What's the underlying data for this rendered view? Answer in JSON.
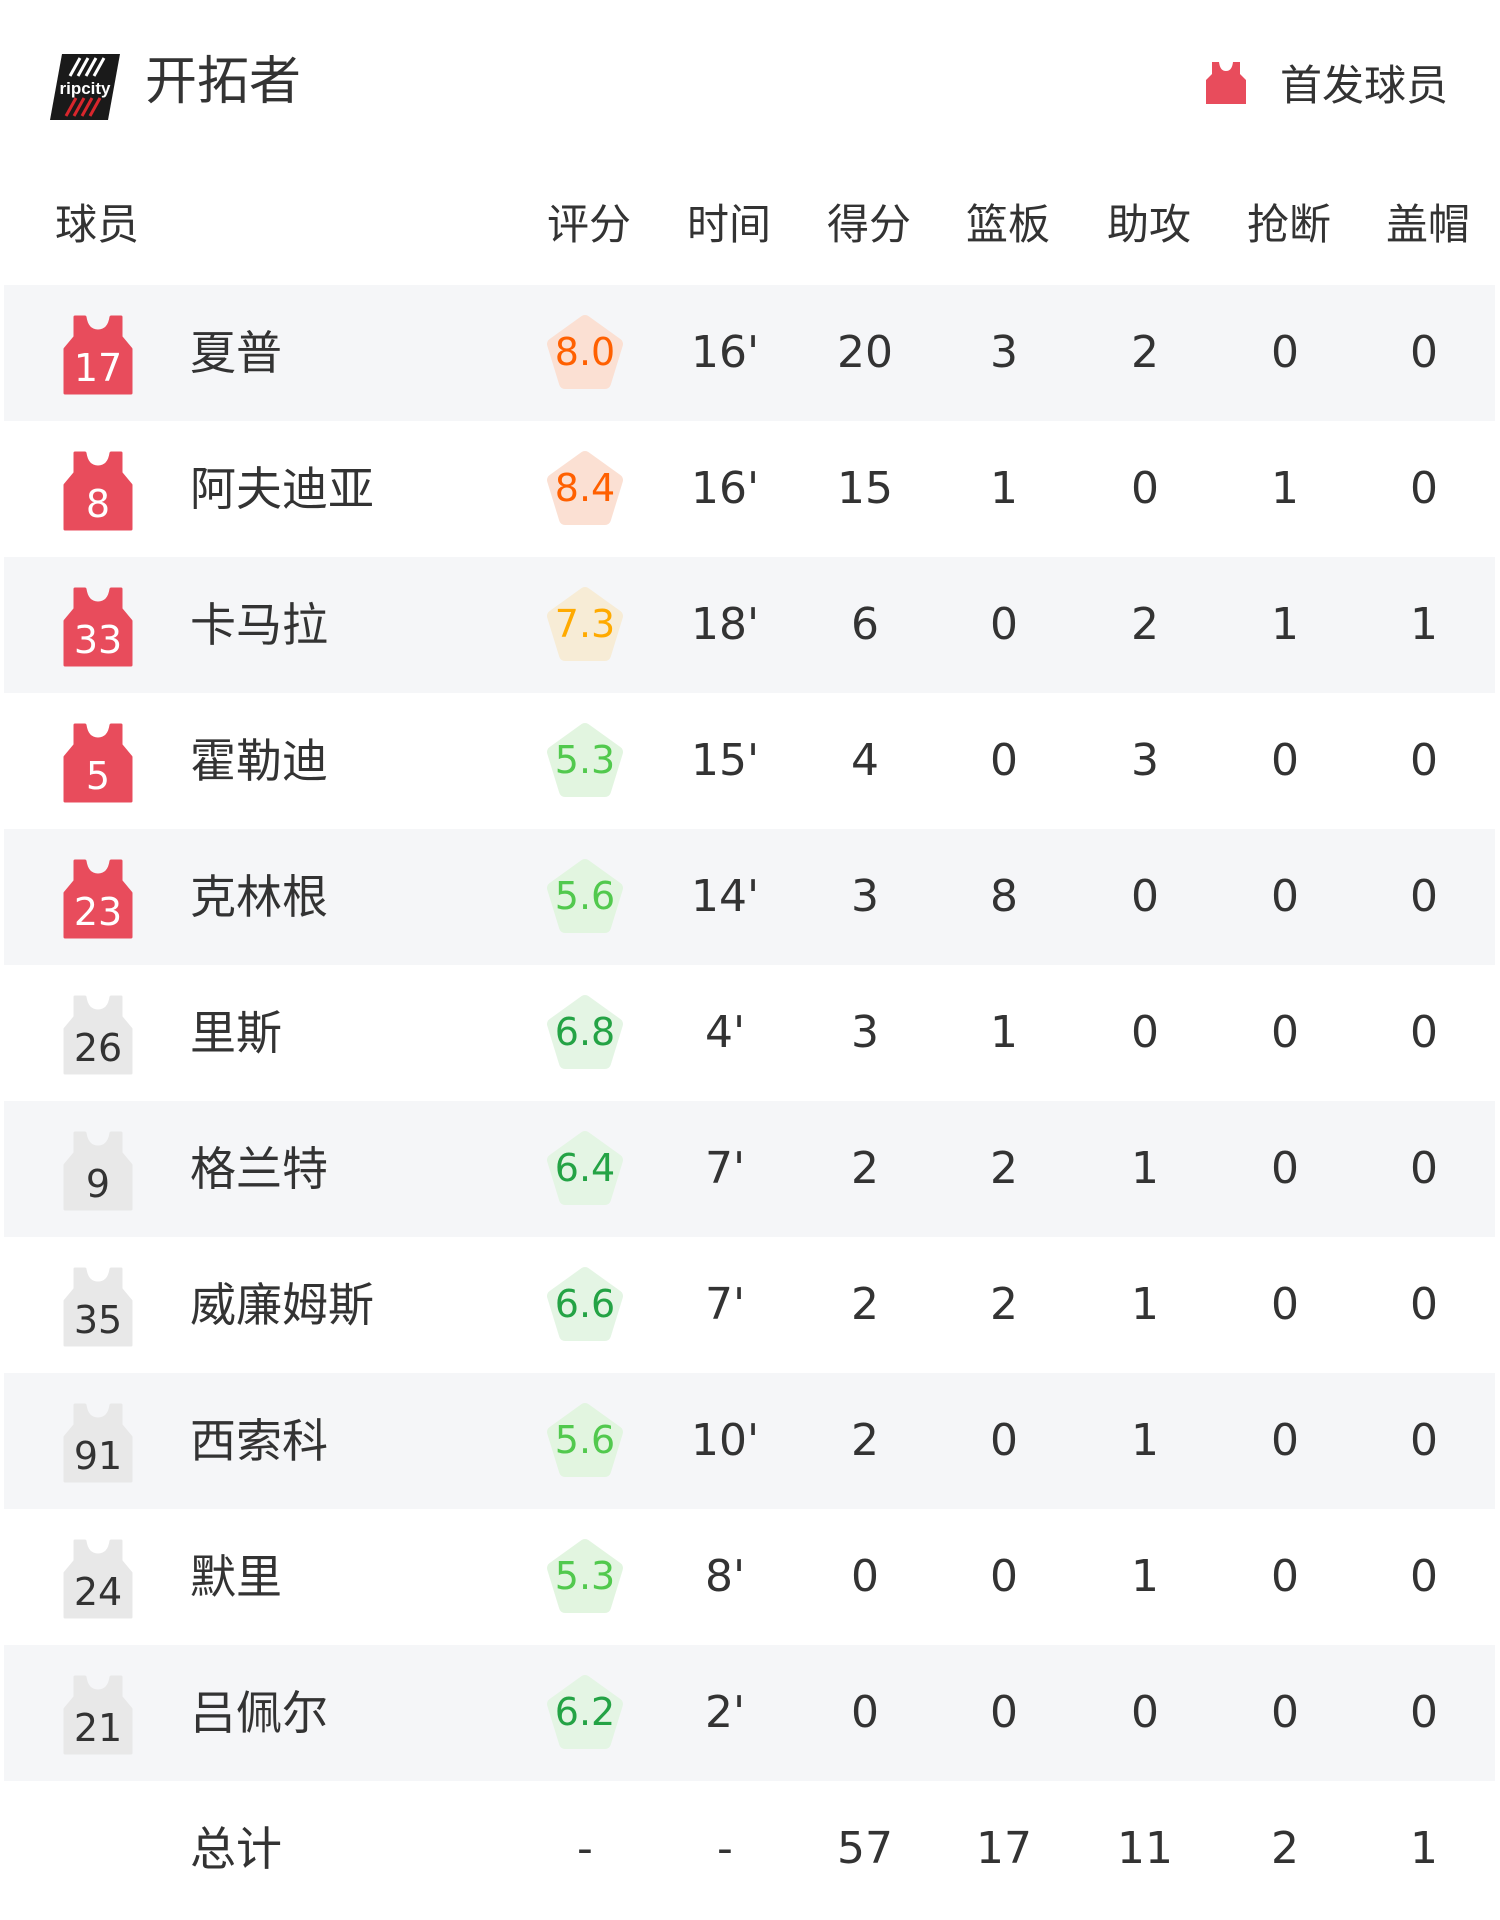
{
  "header": {
    "team_name": "开拓者",
    "logo_text": "ripcity",
    "legend_label": "首发球员",
    "legend_icon": "jersey-icon"
  },
  "columns": [
    "球员",
    "评分",
    "时间",
    "得分",
    "篮板",
    "助攻",
    "抢断",
    "盖帽"
  ],
  "colors": {
    "starter_jersey": "#e84c5c",
    "bench_jersey": "#e8e8e8",
    "row_alt_bg": "#f5f6f8",
    "rating_high_text": "#ff6000",
    "rating_mid_text": "#ffaa00",
    "rating_low_text": "#52c94e",
    "rating_good_text": "#24a345"
  },
  "players": [
    {
      "number": "17",
      "name": "夏普",
      "starter": true,
      "rating": "8.0",
      "tier": "high",
      "min": "16'",
      "pts": "20",
      "reb": "3",
      "ast": "2",
      "stl": "0",
      "blk": "0"
    },
    {
      "number": "8",
      "name": "阿夫迪亚",
      "starter": true,
      "rating": "8.4",
      "tier": "high",
      "min": "16'",
      "pts": "15",
      "reb": "1",
      "ast": "0",
      "stl": "1",
      "blk": "0"
    },
    {
      "number": "33",
      "name": "卡马拉",
      "starter": true,
      "rating": "7.3",
      "tier": "mid",
      "min": "18'",
      "pts": "6",
      "reb": "0",
      "ast": "2",
      "stl": "1",
      "blk": "1"
    },
    {
      "number": "5",
      "name": "霍勒迪",
      "starter": true,
      "rating": "5.3",
      "tier": "low",
      "min": "15'",
      "pts": "4",
      "reb": "0",
      "ast": "3",
      "stl": "0",
      "blk": "0"
    },
    {
      "number": "23",
      "name": "克林根",
      "starter": true,
      "rating": "5.6",
      "tier": "low",
      "min": "14'",
      "pts": "3",
      "reb": "8",
      "ast": "0",
      "stl": "0",
      "blk": "0"
    },
    {
      "number": "26",
      "name": "里斯",
      "starter": false,
      "rating": "6.8",
      "tier": "good",
      "min": "4'",
      "pts": "3",
      "reb": "1",
      "ast": "0",
      "stl": "0",
      "blk": "0"
    },
    {
      "number": "9",
      "name": "格兰特",
      "starter": false,
      "rating": "6.4",
      "tier": "good",
      "min": "7'",
      "pts": "2",
      "reb": "2",
      "ast": "1",
      "stl": "0",
      "blk": "0"
    },
    {
      "number": "35",
      "name": "威廉姆斯",
      "starter": false,
      "rating": "6.6",
      "tier": "good",
      "min": "7'",
      "pts": "2",
      "reb": "2",
      "ast": "1",
      "stl": "0",
      "blk": "0"
    },
    {
      "number": "91",
      "name": "西索科",
      "starter": false,
      "rating": "5.6",
      "tier": "low",
      "min": "10'",
      "pts": "2",
      "reb": "0",
      "ast": "1",
      "stl": "0",
      "blk": "0"
    },
    {
      "number": "24",
      "name": "默里",
      "starter": false,
      "rating": "5.3",
      "tier": "low",
      "min": "8'",
      "pts": "0",
      "reb": "0",
      "ast": "1",
      "stl": "0",
      "blk": "0"
    },
    {
      "number": "21",
      "name": "吕佩尔",
      "starter": false,
      "rating": "6.2",
      "tier": "good",
      "min": "2'",
      "pts": "0",
      "reb": "0",
      "ast": "0",
      "stl": "0",
      "blk": "0"
    }
  ],
  "totals": {
    "label": "总计",
    "rating": "-",
    "min": "-",
    "pts": "57",
    "reb": "17",
    "ast": "11",
    "stl": "2",
    "blk": "1"
  }
}
